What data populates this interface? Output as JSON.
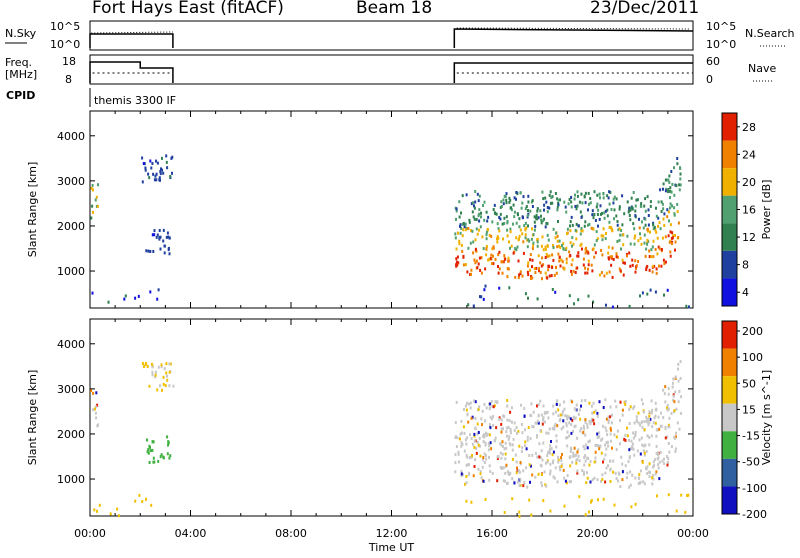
{
  "header": {
    "station": "Fort Hays East (fitACF)",
    "beam": "Beam 18",
    "date": "23/Dec/2011"
  },
  "top_panels": {
    "nsky_label": "N.Sky",
    "nsearch_label": "N.Search",
    "noise_ticks": [
      "10^5",
      "10^0"
    ],
    "freq_label_1": "Freq.",
    "freq_label_2": "[MHz]",
    "freq_ticks": [
      "18",
      "8"
    ],
    "nave_label": "Nave",
    "nave_ticks": [
      "60",
      "0"
    ],
    "cpid_label": "CPID",
    "cpid_text": "themis 3300 IF"
  },
  "colors": {
    "power": [
      "#1010e0",
      "#2040a0",
      "#308050",
      "#50a070",
      "#f0b000",
      "#f08000",
      "#e02000"
    ],
    "velocity": [
      "#1010c0",
      "#3060a0",
      "#40b040",
      "#c8c8c8",
      "#f0c000",
      "#f08000",
      "#e02000"
    ]
  },
  "chart_data": [
    {
      "type": "heatmap",
      "name": "power",
      "ylabel": "Slant Range [km]",
      "colorbar_label": "Power [dB]",
      "colorbar_ticks": [
        "28",
        "24",
        "20",
        "16",
        "12",
        "8",
        "4"
      ],
      "xlim_hours": [
        0,
        24
      ],
      "ylim": [
        180,
        4550
      ],
      "y_ticks": [
        1000,
        2000,
        3000,
        4000
      ],
      "y_tick_labels": [
        "1000",
        "2000",
        "3000",
        "4000"
      ],
      "scatter_regions": [
        {
          "t0": 0.0,
          "t1": 0.3,
          "r0": 2200,
          "r1": 3000,
          "values_db": [
            12,
            20
          ]
        },
        {
          "t0": 2.0,
          "t1": 3.3,
          "r0": 3000,
          "r1": 3600,
          "values_db": [
            4,
            10
          ]
        },
        {
          "t0": 2.2,
          "t1": 3.2,
          "r0": 1400,
          "r1": 2000,
          "values_db": [
            4,
            8
          ]
        },
        {
          "t0": 14.5,
          "t1": 23.5,
          "r0": 900,
          "r1": 1500,
          "values_db": [
            20,
            30
          ]
        },
        {
          "t0": 14.5,
          "t1": 23.5,
          "r0": 1500,
          "r1": 2000,
          "values_db": [
            14,
            22
          ]
        },
        {
          "t0": 14.5,
          "t1": 23.5,
          "r0": 2000,
          "r1": 2800,
          "values_db": [
            6,
            16
          ]
        }
      ]
    },
    {
      "type": "heatmap",
      "name": "velocity",
      "ylabel": "Slant Range [km]",
      "colorbar_label": "Velocity [m s^-1]",
      "colorbar_ticks": [
        "200",
        "100",
        "50",
        "15",
        "-15",
        "-50",
        "-100",
        "-200"
      ],
      "xlim_hours": [
        0,
        24
      ],
      "ylim": [
        180,
        4550
      ],
      "y_ticks": [
        1000,
        2000,
        3000,
        4000
      ],
      "y_tick_labels": [
        "1000",
        "2000",
        "3000",
        "4000"
      ],
      "x_ticks": [
        0,
        4,
        8,
        12,
        16,
        20,
        24
      ],
      "x_tick_labels": [
        "00:00",
        "04:00",
        "08:00",
        "12:00",
        "16:00",
        "20:00",
        "00:00"
      ],
      "xlabel": "Time UT"
    }
  ]
}
